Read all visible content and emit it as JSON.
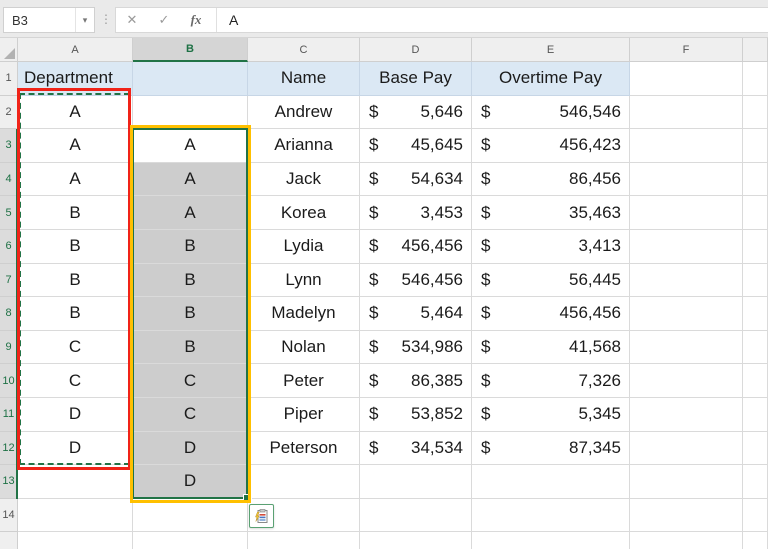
{
  "formula_bar": {
    "name_box_value": "B3",
    "dropdown_icon": "▾",
    "separator_icon": "⋮",
    "cancel_icon": "✕",
    "enter_icon": "✓",
    "fx_icon": "fx",
    "formula_value": "A"
  },
  "grid": {
    "column_headers": [
      "A",
      "B",
      "C",
      "D",
      "E",
      "F",
      ""
    ],
    "selected_column": "B",
    "row_headers": [
      "1",
      "2",
      "3",
      "4",
      "5",
      "6",
      "7",
      "8",
      "9",
      "10",
      "11",
      "12",
      "13",
      "14"
    ],
    "selected_rows": [
      3,
      4,
      5,
      6,
      7,
      8,
      9,
      10,
      11,
      12,
      13
    ],
    "active_cell": "B3",
    "currency": "$",
    "header_row": {
      "A": "Department",
      "B": "",
      "C": "Name",
      "D": "Base Pay",
      "E": "Overtime Pay"
    },
    "rows": [
      {
        "n": "2",
        "A": "A",
        "B": "",
        "C": "Andrew",
        "D": "5,646",
        "E": "546,546"
      },
      {
        "n": "3",
        "A": "A",
        "B": "A",
        "C": "Arianna",
        "D": "45,645",
        "E": "456,423"
      },
      {
        "n": "4",
        "A": "A",
        "B": "A",
        "C": "Jack",
        "D": "54,634",
        "E": "86,456"
      },
      {
        "n": "5",
        "A": "B",
        "B": "A",
        "C": "Korea",
        "D": "3,453",
        "E": "35,463"
      },
      {
        "n": "6",
        "A": "B",
        "B": "B",
        "C": "Lydia",
        "D": "456,456",
        "E": "3,413"
      },
      {
        "n": "7",
        "A": "B",
        "B": "B",
        "C": "Lynn",
        "D": "546,456",
        "E": "56,445"
      },
      {
        "n": "8",
        "A": "B",
        "B": "B",
        "C": "Madelyn",
        "D": "5,464",
        "E": "456,456"
      },
      {
        "n": "9",
        "A": "C",
        "B": "B",
        "C": "Nolan",
        "D": "534,986",
        "E": "41,568"
      },
      {
        "n": "10",
        "A": "C",
        "B": "C",
        "C": "Peter",
        "D": "86,385",
        "E": "7,326"
      },
      {
        "n": "11",
        "A": "D",
        "B": "C",
        "C": "Piper",
        "D": "53,852",
        "E": "5,345"
      },
      {
        "n": "12",
        "A": "D",
        "B": "D",
        "C": "Peterson",
        "D": "34,534",
        "E": "87,345"
      },
      {
        "n": "13",
        "A": "",
        "B": "D",
        "C": "",
        "D": "",
        "E": ""
      },
      {
        "n": "14",
        "A": "",
        "B": "",
        "C": "",
        "D": "",
        "E": ""
      }
    ]
  },
  "annotations": {
    "copy_source_range": "A2:A12",
    "paste_selection_range": "B3:B13"
  },
  "colors": {
    "accent_green": "#217346",
    "header_fill_blue": "#dbe8f4",
    "selection_gray": "#cdcdcd",
    "red_annotation": "#f02318",
    "orange_annotation": "#ffc000"
  }
}
